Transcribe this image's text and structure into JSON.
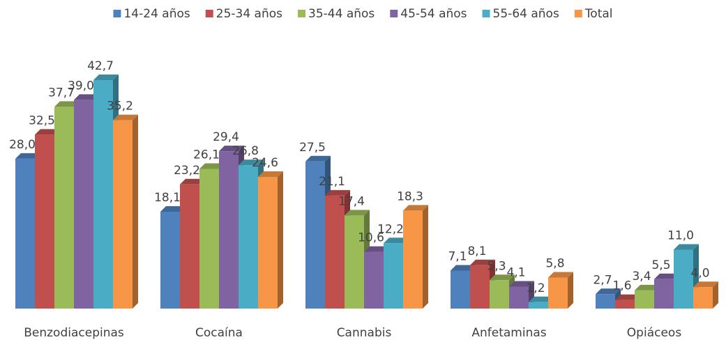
{
  "chart_data": {
    "type": "bar3d",
    "categories": [
      "Benzodiacepinas",
      "Cocaína",
      "Cannabis",
      "Anfetaminas",
      "Opiáceos"
    ],
    "series": [
      {
        "name": "14-24 años",
        "color": "#4f81bd",
        "values": [
          28.0,
          18.1,
          27.5,
          7.1,
          2.7
        ],
        "value_labels": [
          "28,0",
          "18,1",
          "27,5",
          "7,1",
          "2,7"
        ]
      },
      {
        "name": "25-34 años",
        "color": "#c0504d",
        "values": [
          32.5,
          23.2,
          21.1,
          8.1,
          1.6
        ],
        "value_labels": [
          "32,5",
          "23,2",
          "21,1",
          "8,1",
          "1,6"
        ]
      },
      {
        "name": "35-44 años",
        "color": "#9bbb59",
        "values": [
          37.7,
          26.1,
          17.4,
          5.3,
          3.4
        ],
        "value_labels": [
          "37,7",
          "26,1",
          "17,4",
          "5,3",
          "3,4"
        ]
      },
      {
        "name": "45-54 años",
        "color": "#8064a2",
        "values": [
          39.0,
          29.4,
          10.6,
          4.1,
          5.5
        ],
        "value_labels": [
          "39,0",
          "29,4",
          "10,6",
          "4,1",
          "5,5"
        ]
      },
      {
        "name": "55-64 años",
        "color": "#4bacc6",
        "values": [
          42.7,
          26.8,
          12.2,
          1.2,
          11.0
        ],
        "value_labels": [
          "42,7",
          "26,8",
          "12,2",
          "1,2",
          "11,0"
        ]
      },
      {
        "name": "Total",
        "color": "#f79646",
        "values": [
          35.2,
          24.6,
          18.3,
          5.8,
          4.0
        ],
        "value_labels": [
          "35,2",
          "24,6",
          "18,3",
          "5,8",
          "4,0"
        ]
      }
    ],
    "legend": "top"
  }
}
